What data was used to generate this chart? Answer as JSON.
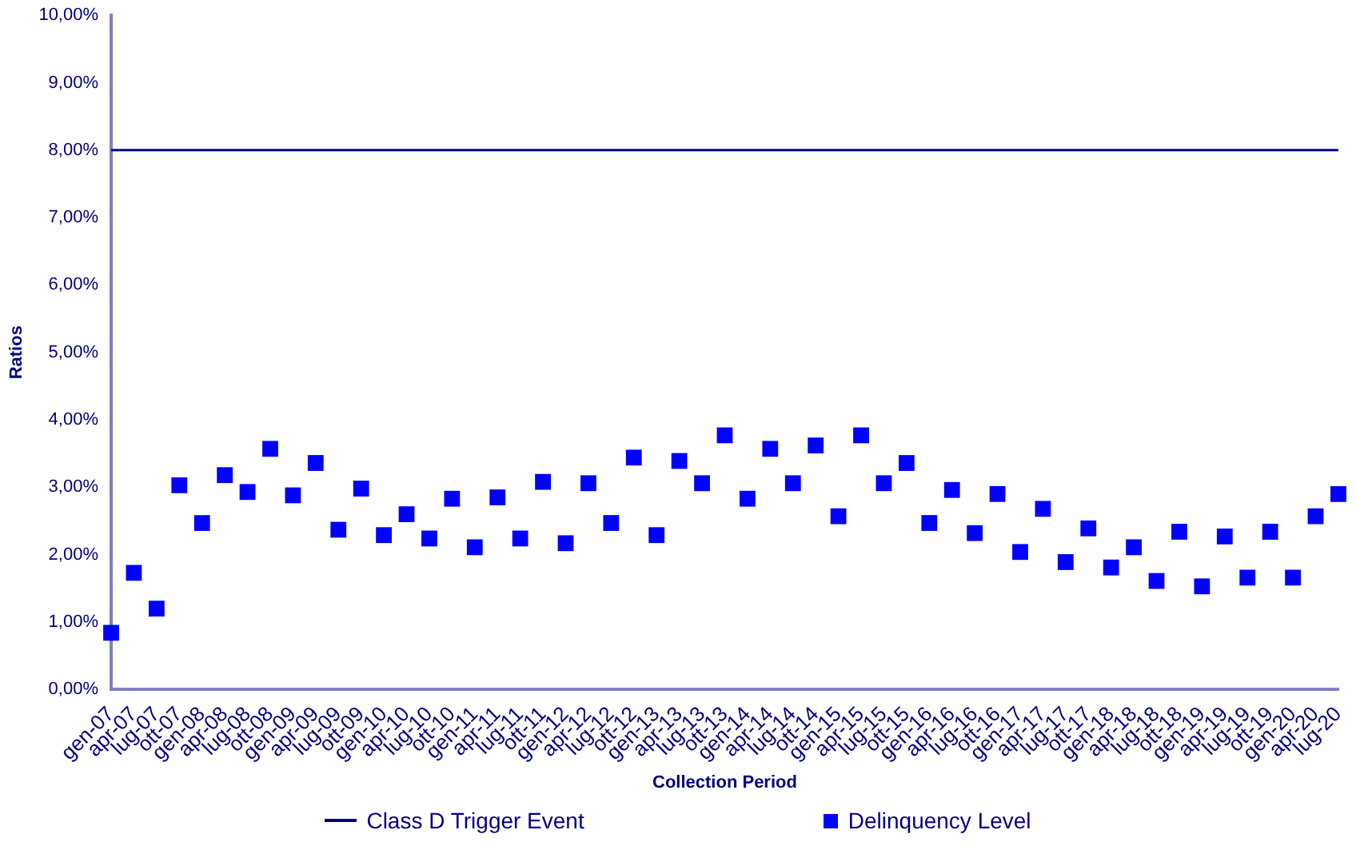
{
  "chart_data": {
    "type": "scatter",
    "xlabel": "Collection Period",
    "ylabel": "Ratios",
    "categories": [
      "gen-07",
      "apr-07",
      "lug-07",
      "ott-07",
      "gen-08",
      "apr-08",
      "lug-08",
      "ott-08",
      "gen-09",
      "apr-09",
      "lug-09",
      "ott-09",
      "gen-10",
      "apr-10",
      "lug-10",
      "ott-10",
      "gen-11",
      "apr-11",
      "lug-11",
      "ott-11",
      "gen-12",
      "apr-12",
      "lug-12",
      "ott-12",
      "gen-13",
      "apr-13",
      "lug-13",
      "ott-13",
      "gen-14",
      "apr-14",
      "lug-14",
      "ott-14",
      "gen-15",
      "apr-15",
      "lug-15",
      "ott-15",
      "gen-16",
      "apr-16",
      "lug-16",
      "ott-16",
      "gen-17",
      "apr-17",
      "lug-17",
      "ott-17",
      "gen-18",
      "apr-18",
      "lug-18",
      "ott-18",
      "gen-19",
      "apr-19",
      "lug-19",
      "ott-19",
      "gen-20",
      "apr-20",
      "lug-20"
    ],
    "series": [
      {
        "name": "Delinquency Level",
        "color": "#0000ff",
        "values": [
          0.84,
          1.73,
          1.2,
          3.03,
          2.47,
          3.18,
          2.93,
          3.57,
          2.88,
          3.36,
          2.37,
          2.98,
          2.29,
          2.6,
          2.24,
          2.83,
          2.11,
          2.85,
          2.24,
          3.08,
          2.17,
          3.06,
          2.47,
          3.44,
          2.29,
          3.39,
          3.06,
          3.77,
          2.83,
          3.57,
          3.06,
          3.62,
          2.57,
          3.77,
          3.06,
          3.36,
          2.47,
          2.96,
          2.32,
          2.9,
          2.04,
          2.68,
          1.89,
          2.39,
          1.81,
          2.11,
          1.61,
          2.34,
          1.53,
          2.27,
          1.66,
          2.34,
          1.66,
          2.57,
          2.9
        ]
      }
    ],
    "ylim": [
      0,
      10
    ],
    "yticks": [
      {
        "value": 0,
        "label": "0,00%"
      },
      {
        "value": 1,
        "label": "1,00%"
      },
      {
        "value": 2,
        "label": "2,00%"
      },
      {
        "value": 3,
        "label": "3,00%"
      },
      {
        "value": 4,
        "label": "4,00%"
      },
      {
        "value": 5,
        "label": "5,00%"
      },
      {
        "value": 6,
        "label": "6,00%"
      },
      {
        "value": 7,
        "label": "7,00%"
      },
      {
        "value": 8,
        "label": "8,00%"
      },
      {
        "value": 9,
        "label": "9,00%"
      },
      {
        "value": 10,
        "label": "10,00%"
      }
    ],
    "ref_lines": [
      {
        "axis": "y",
        "value": 8,
        "label": "Class D Trigger Event",
        "color": "#000080",
        "line_style": "solid"
      }
    ],
    "marker": "square",
    "legend": "bottom",
    "grid": false
  }
}
